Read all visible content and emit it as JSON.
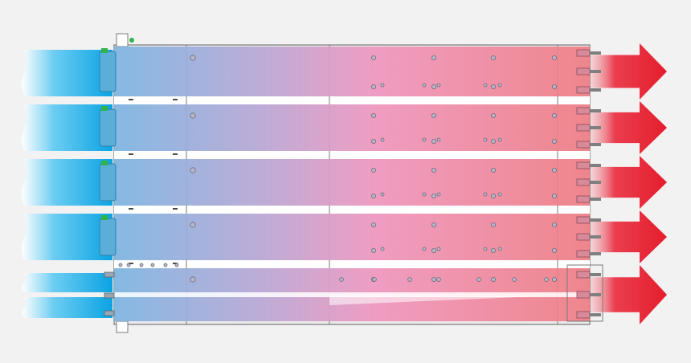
{
  "figure": {
    "description_free": true,
    "colors": {
      "background": "#f2f2f2",
      "inlet_air": "#0aa8e6",
      "outlet_air": "#e8202e",
      "gradient_cool": "#7eb6e2",
      "gradient_mid": "#f095bd",
      "gradient_warm": "#ee7f86",
      "chassis_panel": "#e9e9e9",
      "chassis_outline": "#7a7a7a",
      "fan_module": "#5aaed8",
      "indicator_led": "#2fb34a"
    },
    "icons": {
      "inlet_flow": "wavy-arrow-icon",
      "outlet_flow": "arrow-right-icon",
      "fan_module": "fan-module-icon",
      "latch": "latch-icon",
      "connector": "connector-icon",
      "screw": "screw-icon"
    },
    "server_units": 5,
    "inlet_streams": 6,
    "outlet_arrows": 5
  }
}
